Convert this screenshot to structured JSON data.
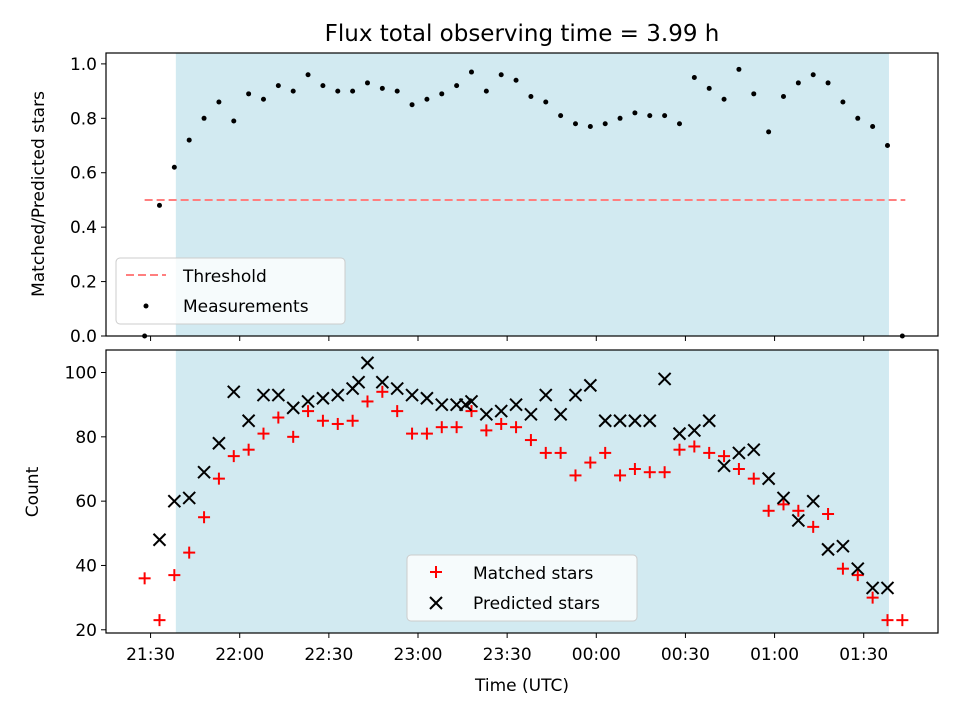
{
  "title": "Flux total observing time = 3.99 h",
  "xlabel": "Time (UTC)",
  "xticks": [
    "21:30",
    "22:00",
    "22:30",
    "23:00",
    "23:30",
    "00:00",
    "00:30",
    "01:00",
    "01:30"
  ],
  "colors": {
    "shade": "#add8e6",
    "threshold": "#ff7f7f",
    "matched": "#ff0000",
    "predicted": "#000000",
    "measurement": "#000000"
  },
  "chart_data": [
    {
      "type": "scatter",
      "ylabel": "Matched/Predicted stars",
      "x_unit": "minutes after 21:30 UTC",
      "xlim": [
        -15,
        265
      ],
      "ylim": [
        0,
        1.04
      ],
      "yticks": [
        "0.0",
        "0.2",
        "0.4",
        "0.6",
        "0.8",
        "1.0"
      ],
      "shaded_x_range": [
        8.5,
        248.5
      ],
      "threshold": {
        "name": "Threshold",
        "value": 0.5,
        "x_range": [
          -2,
          254
        ]
      },
      "legend": {
        "placement": "lower-left",
        "entries": [
          "Threshold",
          "Measurements"
        ]
      },
      "series": [
        {
          "name": "Measurements",
          "x": [
            -2,
            3,
            8,
            13,
            18,
            23,
            28,
            33,
            38,
            43,
            48,
            53,
            58,
            63,
            68,
            73,
            78,
            83,
            88,
            93,
            98,
            103,
            108,
            113,
            118,
            123,
            128,
            133,
            138,
            143,
            148,
            153,
            158,
            163,
            168,
            173,
            178,
            183,
            188,
            193,
            198,
            203,
            208,
            213,
            218,
            223,
            228,
            233,
            238,
            243,
            248,
            253
          ],
          "y": [
            0.0,
            0.48,
            0.62,
            0.72,
            0.8,
            0.86,
            0.79,
            0.89,
            0.87,
            0.92,
            0.9,
            0.96,
            0.92,
            0.9,
            0.9,
            0.93,
            0.91,
            0.9,
            0.85,
            0.87,
            0.89,
            0.92,
            0.97,
            0.9,
            0.96,
            0.94,
            0.88,
            0.86,
            0.81,
            0.78,
            0.77,
            0.78,
            0.8,
            0.82,
            0.81,
            0.81,
            0.78,
            0.95,
            0.91,
            0.87,
            0.98,
            0.89,
            0.75,
            0.88,
            0.93,
            0.96,
            0.93,
            0.86,
            0.8,
            0.77,
            0.7,
            0.0
          ]
        }
      ]
    },
    {
      "type": "scatter",
      "ylabel": "Count",
      "x_unit": "minutes after 21:30 UTC",
      "xlim": [
        -15,
        265
      ],
      "ylim": [
        19,
        107
      ],
      "yticks": [
        "20",
        "40",
        "60",
        "80",
        "100"
      ],
      "shaded_x_range": [
        8.5,
        248.5
      ],
      "legend": {
        "placement": "lower-center",
        "entries": [
          "Matched stars",
          "Predicted stars"
        ]
      },
      "series": [
        {
          "name": "Matched stars",
          "marker": "plus",
          "x": [
            -2,
            3,
            8,
            13,
            18,
            23,
            28,
            33,
            38,
            43,
            48,
            53,
            58,
            63,
            68,
            73,
            78,
            83,
            88,
            93,
            98,
            103,
            108,
            113,
            118,
            123,
            128,
            133,
            138,
            143,
            148,
            153,
            158,
            163,
            168,
            173,
            178,
            183,
            188,
            193,
            198,
            203,
            208,
            213,
            218,
            223,
            228,
            233,
            238,
            243,
            248,
            253
          ],
          "y": [
            36,
            23,
            37,
            44,
            55,
            67,
            74,
            76,
            81,
            86,
            80,
            88,
            85,
            84,
            85,
            91,
            94,
            88,
            81,
            81,
            83,
            83,
            88,
            82,
            84,
            83,
            79,
            75,
            75,
            68,
            72,
            75,
            68,
            70,
            69,
            69,
            76,
            77,
            75,
            74,
            70,
            67,
            57,
            59,
            57,
            52,
            56,
            39,
            37,
            30,
            23,
            23
          ]
        },
        {
          "name": "Predicted stars",
          "marker": "x",
          "x": [
            3,
            8,
            13,
            18,
            23,
            28,
            33,
            38,
            43,
            48,
            53,
            58,
            63,
            68,
            70,
            73,
            78,
            83,
            88,
            93,
            98,
            103,
            106,
            108,
            113,
            118,
            123,
            128,
            133,
            138,
            143,
            148,
            153,
            158,
            163,
            168,
            173,
            178,
            183,
            188,
            193,
            198,
            203,
            208,
            213,
            218,
            223,
            228,
            233,
            238,
            243,
            248
          ],
          "y": [
            48,
            60,
            61,
            69,
            78,
            94,
            85,
            93,
            93,
            89,
            91,
            92,
            93,
            95,
            97,
            103,
            97,
            95,
            93,
            92,
            90,
            90,
            90,
            91,
            87,
            88,
            90,
            87,
            93,
            87,
            93,
            96,
            85,
            85,
            85,
            85,
            98,
            81,
            82,
            85,
            71,
            75,
            76,
            67,
            61,
            54,
            60,
            45,
            46,
            39,
            33,
            33
          ]
        }
      ]
    }
  ]
}
